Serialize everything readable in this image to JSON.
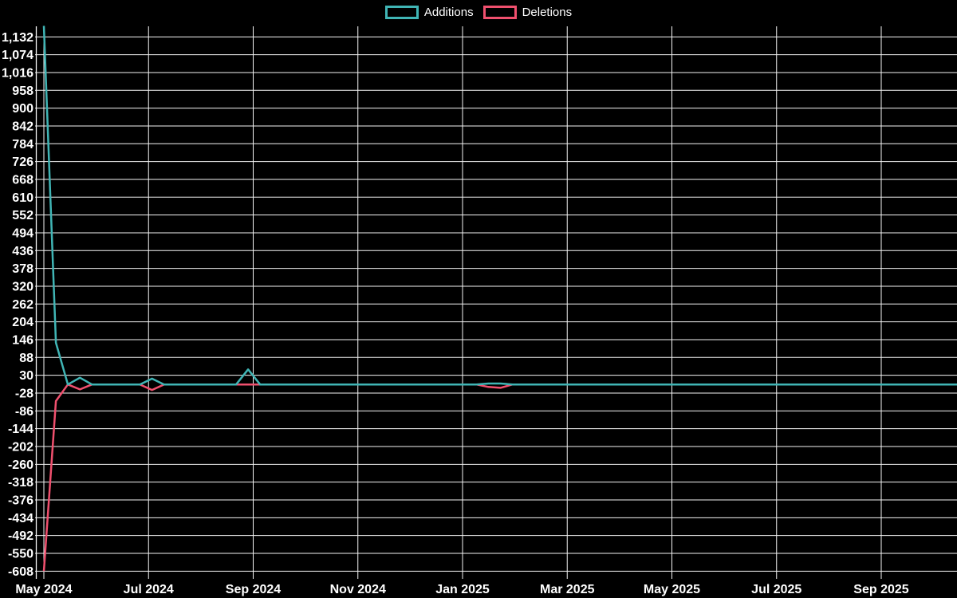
{
  "chart_data": {
    "type": "line",
    "title": "",
    "background_color": "#000000",
    "grid": {
      "shown": true,
      "color": "#f5f5f5"
    },
    "legend": {
      "position": "top-center",
      "items": [
        "Additions",
        "Deletions"
      ]
    },
    "x_axis": {
      "label": "",
      "tick_labels": [
        "May 2024",
        "Jul 2024",
        "Sep 2024",
        "Nov 2024",
        "Jan 2025",
        "Mar 2025",
        "May 2025",
        "Jul 2025",
        "Sep 2025"
      ]
    },
    "y_axis": {
      "label": "",
      "tick_step": 58,
      "range": [
        -608,
        1168
      ],
      "tick_values": [
        1132,
        1074,
        1016,
        958,
        900,
        842,
        784,
        726,
        668,
        610,
        552,
        494,
        436,
        378,
        320,
        262,
        204,
        146,
        88,
        30,
        -28,
        -86,
        -144,
        -202,
        -260,
        -318,
        -376,
        -434,
        -492,
        -550,
        -608
      ]
    },
    "series": [
      {
        "name": "Additions",
        "color": "#40b5b5",
        "points": [
          {
            "date": "2024-05-05",
            "week": 0,
            "value": 1168
          },
          {
            "date": "2024-05-12",
            "week": 1,
            "value": 136
          },
          {
            "date": "2024-05-19",
            "week": 2,
            "value": 0
          },
          {
            "date": "2024-05-26",
            "week": 3,
            "value": 22
          },
          {
            "date": "2024-06-02",
            "week": 4,
            "value": 0
          },
          {
            "date": "2024-06-30",
            "week": 8,
            "value": 0
          },
          {
            "date": "2024-07-07",
            "week": 9,
            "value": 19
          },
          {
            "date": "2024-07-14",
            "week": 10,
            "value": 0
          },
          {
            "date": "2024-08-25",
            "week": 16,
            "value": 0
          },
          {
            "date": "2024-09-01",
            "week": 17,
            "value": 49
          },
          {
            "date": "2024-09-08",
            "week": 18,
            "value": 0
          },
          {
            "date": "2025-01-12",
            "week": 36,
            "value": 0
          },
          {
            "date": "2025-01-19",
            "week": 37,
            "value": 3
          },
          {
            "date": "2025-01-26",
            "week": 38,
            "value": 3
          },
          {
            "date": "2025-02-02",
            "week": 39,
            "value": 0
          },
          {
            "date": "2025-10-12",
            "week": 76,
            "value": 0
          }
        ]
      },
      {
        "name": "Deletions",
        "color": "#f0506e",
        "points": [
          {
            "date": "2024-05-05",
            "week": 0,
            "value": -608
          },
          {
            "date": "2024-05-12",
            "week": 1,
            "value": -54
          },
          {
            "date": "2024-05-19",
            "week": 2,
            "value": 0
          },
          {
            "date": "2024-05-26",
            "week": 3,
            "value": -16
          },
          {
            "date": "2024-06-02",
            "week": 4,
            "value": 0
          },
          {
            "date": "2024-06-30",
            "week": 8,
            "value": 0
          },
          {
            "date": "2024-07-07",
            "week": 9,
            "value": -18
          },
          {
            "date": "2024-07-14",
            "week": 10,
            "value": 0
          },
          {
            "date": "2024-08-25",
            "week": 16,
            "value": 0
          },
          {
            "date": "2024-09-01",
            "week": 17,
            "value": 0
          },
          {
            "date": "2024-09-08",
            "week": 18,
            "value": 0
          },
          {
            "date": "2025-01-12",
            "week": 36,
            "value": 0
          },
          {
            "date": "2025-01-19",
            "week": 37,
            "value": -8
          },
          {
            "date": "2025-01-26",
            "week": 38,
            "value": -11
          },
          {
            "date": "2025-02-02",
            "week": 39,
            "value": 0
          },
          {
            "date": "2025-10-12",
            "week": 76,
            "value": 0
          }
        ]
      }
    ]
  }
}
